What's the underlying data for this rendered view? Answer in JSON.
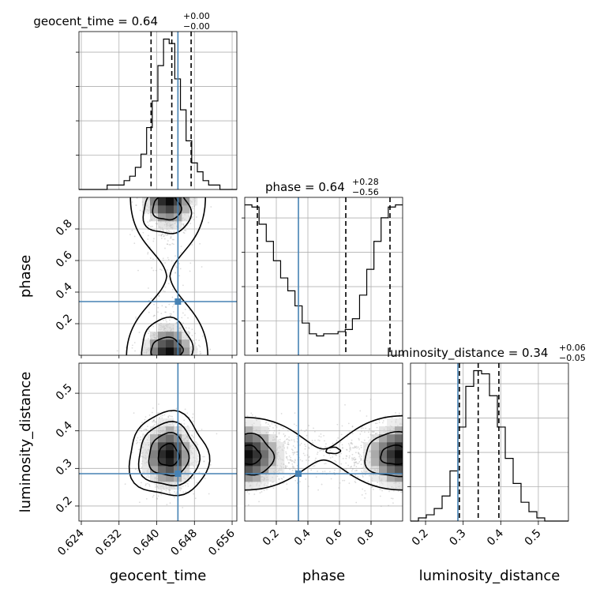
{
  "chart_data": {
    "type": "corner",
    "parameters": [
      "geocent_time",
      "phase",
      "luminosity_distance"
    ],
    "truths": {
      "geocent_time": 0.6445,
      "phase": 0.34,
      "luminosity_distance": 0.286
    },
    "colors": {
      "truth": "#4682b4",
      "hist": "#000000",
      "grid": "#b0b0b0",
      "samples": "#9a9a9a"
    },
    "titles": {
      "geocent_time": {
        "label": "geocent_time = 0.64",
        "sup": "+0.00",
        "sub": "−0.00"
      },
      "phase": {
        "label": "phase = 0.64",
        "sup": "+0.28",
        "sub": "−0.56"
      },
      "luminosity_distance": {
        "label": "luminosity_distance = 0.34",
        "sup": "+0.06",
        "sub": "−0.05"
      }
    },
    "axes": {
      "geocent_time": {
        "range": [
          0.6235,
          0.657
        ],
        "ticks": [
          0.624,
          0.632,
          0.64,
          0.648,
          0.656
        ],
        "tick_labels": [
          "0.624",
          "0.632",
          "0.640",
          "0.648",
          "0.656"
        ]
      },
      "phase": {
        "range": [
          0.0,
          1.0
        ],
        "ticks": [
          0.2,
          0.4,
          0.6,
          0.8
        ],
        "tick_labels": [
          "0.2",
          "0.4",
          "0.6",
          "0.8"
        ]
      },
      "luminosity_distance": {
        "range": [
          0.16,
          0.58
        ],
        "ticks": [
          0.2,
          0.3,
          0.4,
          0.5
        ],
        "tick_labels": [
          "0.2",
          "0.3",
          "0.4",
          "0.5"
        ]
      }
    },
    "quantiles": {
      "geocent_time": [
        0.6388,
        0.6432,
        0.6473
      ],
      "phase": [
        0.08,
        0.64,
        0.92
      ],
      "luminosity_distance": [
        0.29,
        0.34,
        0.395
      ]
    },
    "histograms": {
      "geocent_time": {
        "edges_range": [
          0.6235,
          0.657
        ],
        "counts": [
          0,
          0,
          0,
          0,
          0,
          1,
          1,
          1,
          2,
          3,
          5,
          8,
          14,
          20,
          28,
          34,
          33,
          25,
          18,
          11,
          6,
          4,
          2,
          1,
          1,
          0,
          0,
          0
        ]
      },
      "phase": {
        "edges_range": [
          0.0,
          1.0
        ],
        "counts": [
          70,
          69,
          61,
          53,
          44,
          36,
          30,
          23,
          15,
          10,
          9,
          10,
          10,
          11,
          12,
          17,
          28,
          40,
          53,
          64,
          69,
          70
        ]
      },
      "luminosity_distance": {
        "edges_range": [
          0.16,
          0.58
        ],
        "counts": [
          0,
          1,
          2,
          4,
          8,
          16,
          30,
          43,
          48,
          47,
          40,
          30,
          20,
          12,
          6,
          3,
          1,
          0,
          0,
          0
        ]
      }
    },
    "xlabels": [
      "geocent_time",
      "phase",
      "luminosity_distance"
    ],
    "ylabels": [
      "phase",
      "luminosity_distance"
    ]
  }
}
